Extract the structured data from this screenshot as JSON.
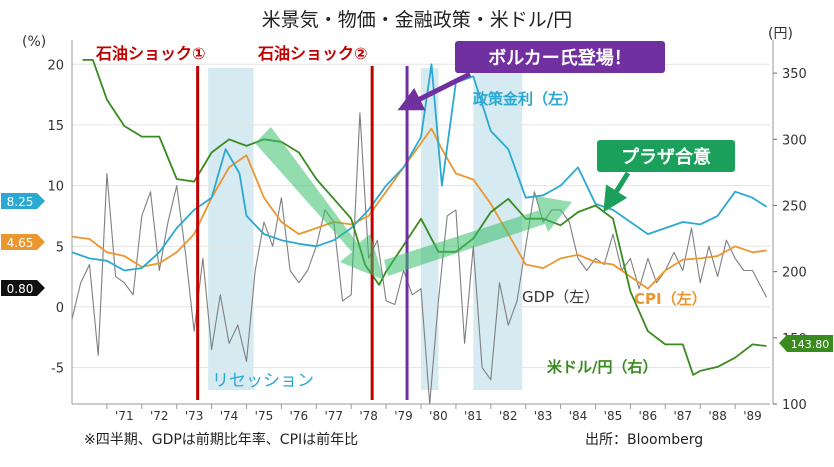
{
  "chart_data": {
    "type": "line",
    "title": "米景気・物価・金融政策・米ドル/円",
    "left_axis": {
      "unit": "(%)",
      "range": [
        -8,
        22
      ],
      "ticks": [
        -5,
        0,
        5,
        10,
        15,
        20
      ]
    },
    "right_axis": {
      "unit": "(円)",
      "range": [
        100,
        375
      ],
      "ticks": [
        100,
        150,
        200,
        250,
        300,
        350
      ]
    },
    "x_range": [
      1970,
      1990
    ],
    "x_ticks": [
      {
        "label": "'71",
        "x": 1971.5
      },
      {
        "label": "'72",
        "x": 1972.5
      },
      {
        "label": "'73",
        "x": 1973.5
      },
      {
        "label": "'74",
        "x": 1974.5
      },
      {
        "label": "'75",
        "x": 1975.5
      },
      {
        "label": "'76",
        "x": 1976.5
      },
      {
        "label": "'77",
        "x": 1977.5
      },
      {
        "label": "'78",
        "x": 1978.5
      },
      {
        "label": "'79",
        "x": 1979.5
      },
      {
        "label": "'80",
        "x": 1980.5
      },
      {
        "label": "'81",
        "x": 1981.5
      },
      {
        "label": "'82",
        "x": 1982.5
      },
      {
        "label": "'83",
        "x": 1983.5
      },
      {
        "label": "'84",
        "x": 1984.5
      },
      {
        "label": "'85",
        "x": 1985.5
      },
      {
        "label": "'86",
        "x": 1986.5
      },
      {
        "label": "'87",
        "x": 1987.5
      },
      {
        "label": "'88",
        "x": 1988.5
      },
      {
        "label": "'89",
        "x": 1989.5
      }
    ],
    "recessions": [
      {
        "start": 1973.9,
        "end": 1975.2
      },
      {
        "start": 1980.0,
        "end": 1980.5
      },
      {
        "start": 1981.5,
        "end": 1982.9
      }
    ],
    "event_lines": [
      {
        "label": "石油ショック①",
        "x": 1973.6,
        "color": "#c00000"
      },
      {
        "label": "石油ショック②",
        "x": 1978.6,
        "color": "#c00000"
      },
      {
        "label": "ボルカー氏登場！",
        "x": 1979.6,
        "color": "#7030a0"
      }
    ],
    "annotations": {
      "volcker": "ボルカー氏登場！",
      "plaza": "プラザ合意",
      "recession": "リセッション"
    },
    "series": [
      {
        "name": "政策金利（左）",
        "axis": "left",
        "color": "#2aa9d2",
        "end_label": "8.25",
        "points": [
          [
            1970.0,
            4.5
          ],
          [
            1970.5,
            4.0
          ],
          [
            1971.0,
            3.8
          ],
          [
            1971.5,
            3.0
          ],
          [
            1972.0,
            3.2
          ],
          [
            1972.5,
            4.5
          ],
          [
            1973.0,
            6.5
          ],
          [
            1973.5,
            8.0
          ],
          [
            1974.0,
            9.0
          ],
          [
            1974.4,
            13.0
          ],
          [
            1974.8,
            11.0
          ],
          [
            1975.0,
            7.5
          ],
          [
            1975.5,
            6.0
          ],
          [
            1976.0,
            5.5
          ],
          [
            1976.5,
            5.2
          ],
          [
            1977.0,
            5.0
          ],
          [
            1977.5,
            5.5
          ],
          [
            1978.0,
            6.5
          ],
          [
            1978.5,
            8.0
          ],
          [
            1979.0,
            10.0
          ],
          [
            1979.5,
            11.5
          ],
          [
            1980.0,
            14.0
          ],
          [
            1980.3,
            20.0
          ],
          [
            1980.6,
            10.0
          ],
          [
            1981.0,
            18.5
          ],
          [
            1981.5,
            19.0
          ],
          [
            1982.0,
            14.5
          ],
          [
            1982.5,
            13.0
          ],
          [
            1983.0,
            9.0
          ],
          [
            1983.5,
            9.2
          ],
          [
            1984.0,
            10.0
          ],
          [
            1984.5,
            11.5
          ],
          [
            1985.0,
            8.5
          ],
          [
            1985.5,
            8.0
          ],
          [
            1986.0,
            7.0
          ],
          [
            1986.5,
            6.0
          ],
          [
            1987.0,
            6.5
          ],
          [
            1987.5,
            7.0
          ],
          [
            1988.0,
            6.8
          ],
          [
            1988.5,
            7.5
          ],
          [
            1989.0,
            9.5
          ],
          [
            1989.5,
            9.0
          ],
          [
            1989.9,
            8.25
          ]
        ]
      },
      {
        "name": "CPI（左）",
        "axis": "left",
        "color": "#ec9630",
        "end_label": "4.65",
        "points": [
          [
            1970.0,
            5.8
          ],
          [
            1970.5,
            5.6
          ],
          [
            1971.0,
            4.5
          ],
          [
            1971.5,
            4.2
          ],
          [
            1972.0,
            3.3
          ],
          [
            1972.5,
            3.6
          ],
          [
            1973.0,
            4.5
          ],
          [
            1973.5,
            6.0
          ],
          [
            1974.0,
            9.0
          ],
          [
            1974.5,
            11.5
          ],
          [
            1975.0,
            12.5
          ],
          [
            1975.5,
            9.0
          ],
          [
            1976.0,
            7.0
          ],
          [
            1976.5,
            6.0
          ],
          [
            1977.0,
            6.5
          ],
          [
            1977.5,
            7.0
          ],
          [
            1978.0,
            6.8
          ],
          [
            1978.5,
            7.5
          ],
          [
            1979.0,
            9.5
          ],
          [
            1979.5,
            11.5
          ],
          [
            1980.0,
            13.5
          ],
          [
            1980.3,
            14.7
          ],
          [
            1980.6,
            13.0
          ],
          [
            1981.0,
            11.0
          ],
          [
            1981.5,
            10.5
          ],
          [
            1982.0,
            8.5
          ],
          [
            1982.5,
            6.0
          ],
          [
            1983.0,
            3.5
          ],
          [
            1983.5,
            3.2
          ],
          [
            1984.0,
            4.0
          ],
          [
            1984.5,
            4.3
          ],
          [
            1985.0,
            3.7
          ],
          [
            1985.5,
            3.5
          ],
          [
            1986.0,
            2.5
          ],
          [
            1986.5,
            1.5
          ],
          [
            1987.0,
            3.0
          ],
          [
            1987.5,
            3.9
          ],
          [
            1988.0,
            4.0
          ],
          [
            1988.5,
            4.2
          ],
          [
            1989.0,
            5.0
          ],
          [
            1989.5,
            4.5
          ],
          [
            1989.9,
            4.65
          ]
        ]
      },
      {
        "name": "GDP（左）",
        "axis": "left",
        "color": "#7f7f7f",
        "end_label": "0.80",
        "points": [
          [
            1970.0,
            -1.0
          ],
          [
            1970.25,
            2.0
          ],
          [
            1970.5,
            3.5
          ],
          [
            1970.75,
            -4.0
          ],
          [
            1971.0,
            11.0
          ],
          [
            1971.25,
            2.5
          ],
          [
            1971.5,
            2.0
          ],
          [
            1971.75,
            1.0
          ],
          [
            1972.0,
            7.5
          ],
          [
            1972.25,
            9.5
          ],
          [
            1972.5,
            3.0
          ],
          [
            1972.75,
            7.0
          ],
          [
            1973.0,
            10.0
          ],
          [
            1973.25,
            4.5
          ],
          [
            1973.5,
            -2.0
          ],
          [
            1973.75,
            4.0
          ],
          [
            1974.0,
            -3.5
          ],
          [
            1974.25,
            1.0
          ],
          [
            1974.5,
            -3.0
          ],
          [
            1974.75,
            -1.5
          ],
          [
            1975.0,
            -4.5
          ],
          [
            1975.25,
            3.0
          ],
          [
            1975.5,
            7.0
          ],
          [
            1975.75,
            5.0
          ],
          [
            1976.0,
            9.0
          ],
          [
            1976.25,
            3.0
          ],
          [
            1976.5,
            2.0
          ],
          [
            1976.75,
            3.0
          ],
          [
            1977.0,
            5.0
          ],
          [
            1977.25,
            8.0
          ],
          [
            1977.5,
            7.0
          ],
          [
            1977.75,
            0.5
          ],
          [
            1978.0,
            1.0
          ],
          [
            1978.25,
            16.0
          ],
          [
            1978.5,
            4.0
          ],
          [
            1978.75,
            5.5
          ],
          [
            1979.0,
            0.5
          ],
          [
            1979.25,
            0.2
          ],
          [
            1979.5,
            3.0
          ],
          [
            1979.75,
            1.0
          ],
          [
            1980.0,
            1.5
          ],
          [
            1980.25,
            -8.0
          ],
          [
            1980.5,
            0.5
          ],
          [
            1980.75,
            7.5
          ],
          [
            1981.0,
            8.0
          ],
          [
            1981.25,
            -3.0
          ],
          [
            1981.5,
            5.0
          ],
          [
            1981.75,
            -5.0
          ],
          [
            1982.0,
            -6.0
          ],
          [
            1982.25,
            2.0
          ],
          [
            1982.5,
            -1.5
          ],
          [
            1982.75,
            0.5
          ],
          [
            1983.0,
            5.0
          ],
          [
            1983.25,
            9.5
          ],
          [
            1983.5,
            7.0
          ],
          [
            1983.75,
            8.0
          ],
          [
            1984.0,
            8.0
          ],
          [
            1984.25,
            7.0
          ],
          [
            1984.5,
            4.0
          ],
          [
            1984.75,
            3.0
          ],
          [
            1985.0,
            4.0
          ],
          [
            1985.25,
            3.5
          ],
          [
            1985.5,
            6.0
          ],
          [
            1985.75,
            3.0
          ],
          [
            1986.0,
            4.0
          ],
          [
            1986.25,
            1.5
          ],
          [
            1986.5,
            4.0
          ],
          [
            1986.75,
            2.0
          ],
          [
            1987.0,
            3.0
          ],
          [
            1987.25,
            4.5
          ],
          [
            1987.5,
            3.0
          ],
          [
            1987.75,
            6.5
          ],
          [
            1988.0,
            2.0
          ],
          [
            1988.25,
            5.0
          ],
          [
            1988.5,
            2.5
          ],
          [
            1988.75,
            5.5
          ],
          [
            1989.0,
            4.0
          ],
          [
            1989.25,
            3.0
          ],
          [
            1989.5,
            3.0
          ],
          [
            1989.9,
            0.8
          ]
        ]
      },
      {
        "name": "米ドル/円（右）",
        "axis": "right",
        "color": "#3a8b1f",
        "end_label": "143.80",
        "points": [
          [
            1970.3,
            360
          ],
          [
            1970.6,
            360
          ],
          [
            1971.0,
            330
          ],
          [
            1971.5,
            310
          ],
          [
            1972.0,
            302
          ],
          [
            1972.5,
            302
          ],
          [
            1973.0,
            270
          ],
          [
            1973.5,
            268
          ],
          [
            1974.0,
            290
          ],
          [
            1974.5,
            300
          ],
          [
            1975.0,
            295
          ],
          [
            1975.5,
            300
          ],
          [
            1976.0,
            298
          ],
          [
            1976.5,
            290
          ],
          [
            1977.0,
            270
          ],
          [
            1977.5,
            255
          ],
          [
            1978.0,
            240
          ],
          [
            1978.4,
            205
          ],
          [
            1978.8,
            190
          ],
          [
            1979.0,
            200
          ],
          [
            1979.5,
            220
          ],
          [
            1980.0,
            240
          ],
          [
            1980.5,
            215
          ],
          [
            1981.0,
            215
          ],
          [
            1981.5,
            225
          ],
          [
            1982.0,
            245
          ],
          [
            1982.5,
            255
          ],
          [
            1983.0,
            240
          ],
          [
            1983.5,
            240
          ],
          [
            1984.0,
            235
          ],
          [
            1984.5,
            245
          ],
          [
            1985.0,
            250
          ],
          [
            1985.5,
            240
          ],
          [
            1986.0,
            185
          ],
          [
            1986.5,
            155
          ],
          [
            1987.0,
            145
          ],
          [
            1987.5,
            145
          ],
          [
            1987.8,
            122
          ],
          [
            1988.0,
            125
          ],
          [
            1988.5,
            128
          ],
          [
            1989.0,
            135
          ],
          [
            1989.5,
            145
          ],
          [
            1989.9,
            143.8
          ]
        ]
      }
    ],
    "footnote": "※四半期、GDPは前期比年率、CPIは前年比",
    "source": "出所：Bloomberg"
  }
}
